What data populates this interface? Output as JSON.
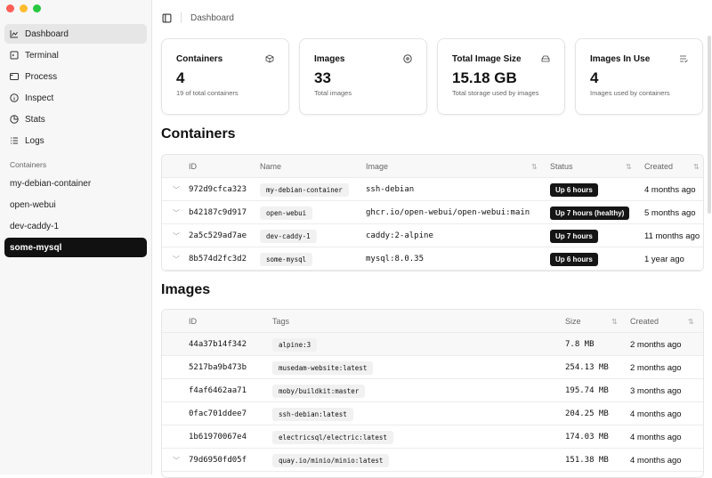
{
  "window": {
    "colors": {
      "close": "#ff5f57",
      "minimize": "#febc2e",
      "zoom": "#28c840"
    }
  },
  "sidebar": {
    "items": [
      {
        "label": "Dashboard",
        "icon": "chart-line-icon"
      },
      {
        "label": "Terminal",
        "icon": "terminal-icon"
      },
      {
        "label": "Process",
        "icon": "window-icon"
      },
      {
        "label": "Inspect",
        "icon": "info-icon"
      },
      {
        "label": "Stats",
        "icon": "clock-pie-icon"
      },
      {
        "label": "Logs",
        "icon": "list-icon"
      }
    ],
    "containers_label": "Containers",
    "containers": [
      "my-debian-container",
      "open-webui",
      "dev-caddy-1",
      "some-mysql"
    ]
  },
  "header": {
    "breadcrumb": "Dashboard"
  },
  "cards": [
    {
      "title": "Containers",
      "value": "4",
      "subtitle": "19 of total containers",
      "icon": "box-icon"
    },
    {
      "title": "Images",
      "value": "33",
      "subtitle": "Total images",
      "icon": "disc-icon"
    },
    {
      "title": "Total Image Size",
      "value": "15.18 GB",
      "subtitle": "Total storage used by images",
      "icon": "hard-drive-icon"
    },
    {
      "title": "Images In Use",
      "value": "4",
      "subtitle": "Images used by containers",
      "icon": "list-check-icon"
    }
  ],
  "containers": {
    "title": "Containers",
    "columns": [
      "ID",
      "Name",
      "Image",
      "Status",
      "Created"
    ],
    "rows": [
      {
        "id": "972d9cfca323",
        "name": "my-debian-container",
        "image": "ssh-debian",
        "status": "Up 6 hours",
        "created": "4 months ago"
      },
      {
        "id": "b42187c9d917",
        "name": "open-webui",
        "image": "ghcr.io/open-webui/open-webui:main",
        "status": "Up 7 hours (healthy)",
        "created": "5 months ago"
      },
      {
        "id": "2a5c529ad7ae",
        "name": "dev-caddy-1",
        "image": "caddy:2-alpine",
        "status": "Up 7 hours",
        "created": "11 months ago"
      },
      {
        "id": "8b574d2fc3d2",
        "name": "some-mysql",
        "image": "mysql:8.0.35",
        "status": "Up 6 hours",
        "created": "1 year ago"
      }
    ]
  },
  "images": {
    "title": "Images",
    "columns": [
      "ID",
      "Tags",
      "Size",
      "Created"
    ],
    "rows": [
      {
        "id": "44a37b14f342",
        "tag": "alpine:3",
        "size": "7.8 MB",
        "created": "2 months ago"
      },
      {
        "id": "5217ba9b473b",
        "tag": "musedam-website:latest",
        "size": "254.13 MB",
        "created": "2 months ago"
      },
      {
        "id": "f4af6462aa71",
        "tag": "moby/buildkit:master",
        "size": "195.74 MB",
        "created": "3 months ago"
      },
      {
        "id": "0fac701ddee7",
        "tag": "ssh-debian:latest",
        "size": "204.25 MB",
        "created": "4 months ago"
      },
      {
        "id": "1b61970067e4",
        "tag": "electricsql/electric:latest",
        "size": "174.03 MB",
        "created": "4 months ago"
      },
      {
        "id": "79d6950fd05f",
        "tag": "quay.io/minio/minio:latest",
        "size": "151.38 MB",
        "created": "4 months ago"
      }
    ]
  }
}
